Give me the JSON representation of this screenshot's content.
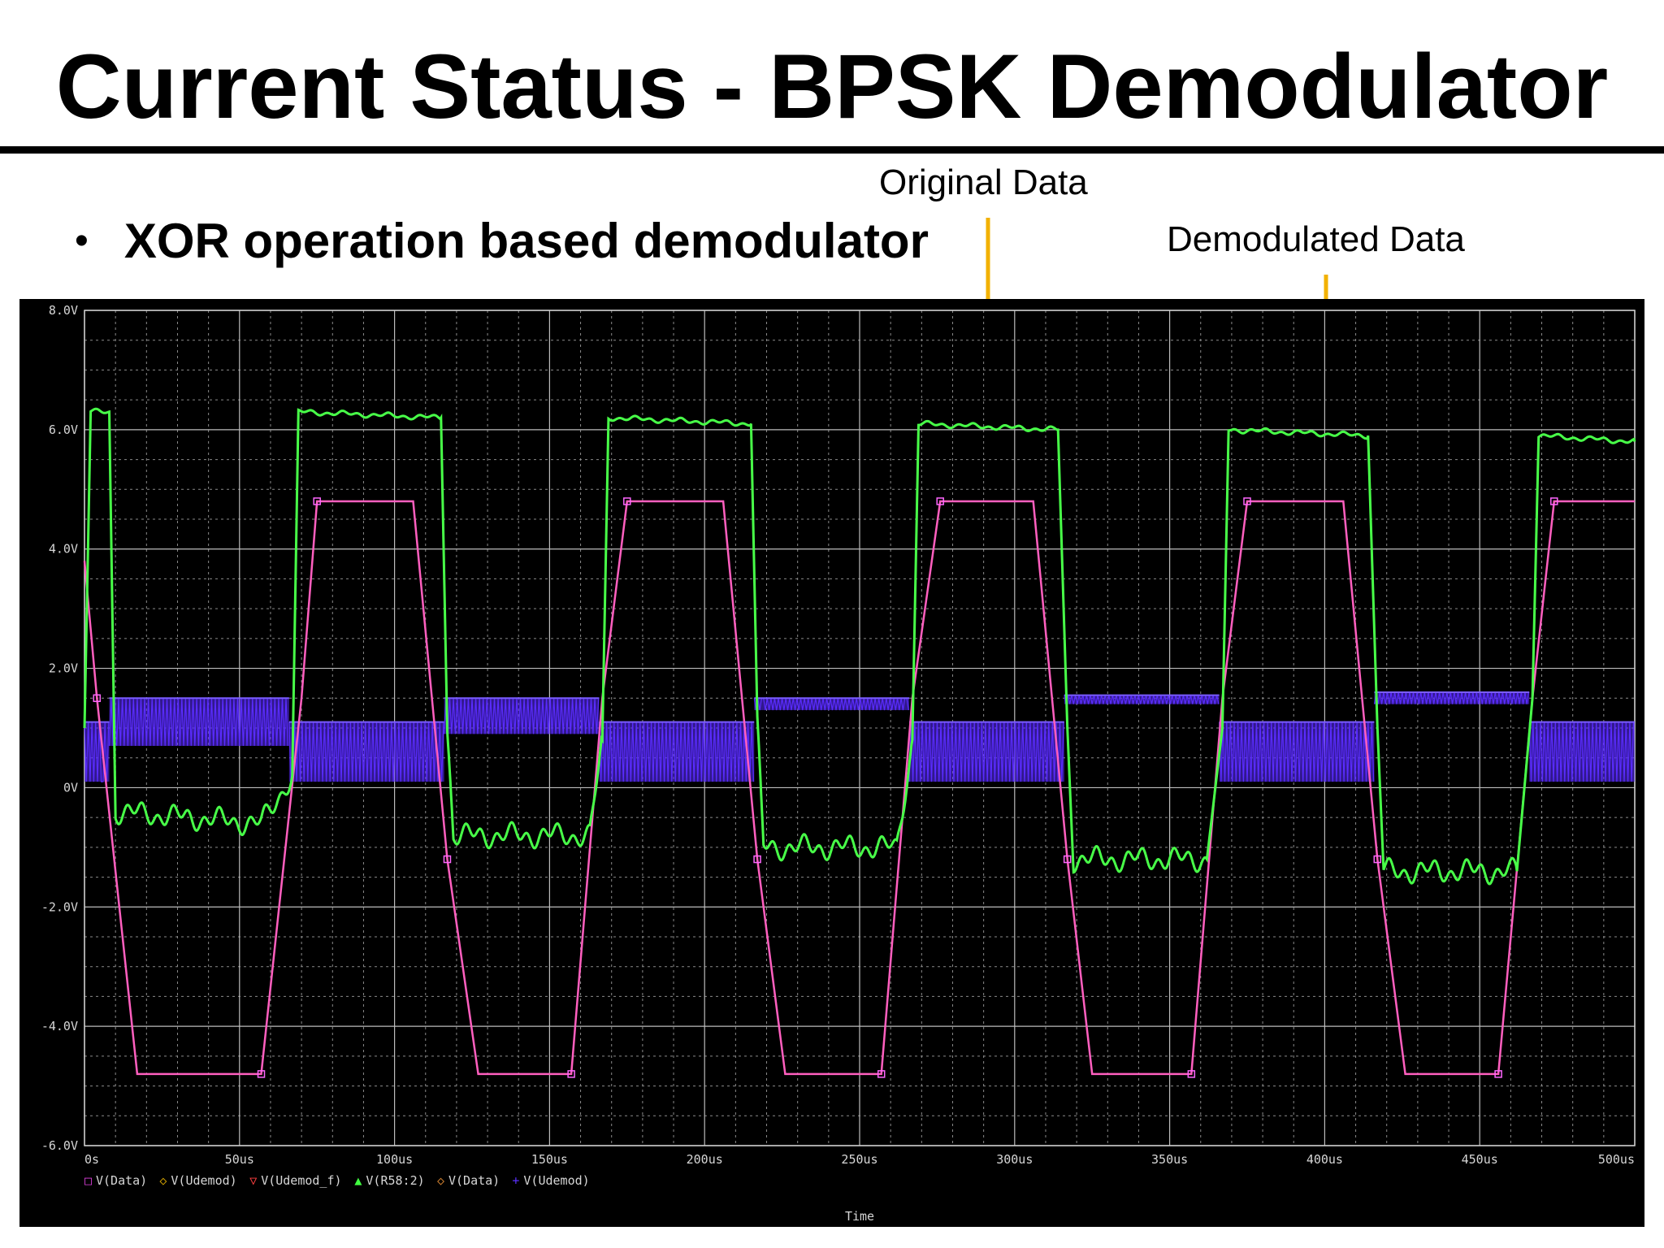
{
  "slide": {
    "title": "Current Status - BPSK Demodulator",
    "bullet": "XOR operation based demodulator",
    "bullet_symbol": "•"
  },
  "annotations": [
    {
      "text": "Original Data",
      "arrow_color": "#f2b100"
    },
    {
      "text": "Demodulated Data",
      "arrow_color": "#f2b100"
    }
  ],
  "chart_data": {
    "type": "line",
    "background": "#000000",
    "grid": true,
    "xlabel": "Time",
    "ylabel": "",
    "x_unit": "us",
    "xlim": [
      0,
      500
    ],
    "ylim": [
      -6,
      8
    ],
    "x_ticks": [
      {
        "v": 0,
        "label": "0s"
      },
      {
        "v": 50,
        "label": "50us"
      },
      {
        "v": 100,
        "label": "100us"
      },
      {
        "v": 150,
        "label": "150us"
      },
      {
        "v": 200,
        "label": "200us"
      },
      {
        "v": 250,
        "label": "250us"
      },
      {
        "v": 300,
        "label": "300us"
      },
      {
        "v": 350,
        "label": "350us"
      },
      {
        "v": 400,
        "label": "400us"
      },
      {
        "v": 450,
        "label": "450us"
      },
      {
        "v": 500,
        "label": "500us"
      }
    ],
    "y_ticks": [
      {
        "v": 8,
        "label": "8.0V"
      },
      {
        "v": 6,
        "label": "6.0V"
      },
      {
        "v": 4,
        "label": "4.0V"
      },
      {
        "v": 2,
        "label": "2.0V"
      },
      {
        "v": 0,
        "label": "0V"
      },
      {
        "v": -2,
        "label": "-2.0V"
      },
      {
        "v": -4,
        "label": "-4.0V"
      },
      {
        "v": -6,
        "label": "-6.0V"
      }
    ],
    "legend": [
      {
        "symbol": "□",
        "name": "V(Data)",
        "color": "#e040e0"
      },
      {
        "symbol": "◇",
        "name": "V(Udemod)",
        "color": "#d0a000"
      },
      {
        "symbol": "▽",
        "name": "V(Udemod_f)",
        "color": "#ff4040"
      },
      {
        "symbol": "▲",
        "name": "V(R58:2)",
        "color": "#40ff40"
      },
      {
        "symbol": "◇",
        "name": "V(Data)",
        "color": "#d08030"
      },
      {
        "symbol": "+",
        "name": "V(Udemod)",
        "color": "#5a30ff"
      }
    ],
    "series": [
      {
        "name": "V(Data)",
        "color": "#ff5fbf",
        "x": [
          0,
          4,
          17,
          57,
          70,
          75,
          106,
          117,
          127,
          157,
          167,
          175,
          206,
          217,
          226,
          257,
          267,
          276,
          306,
          317,
          325,
          357,
          367,
          375,
          406,
          417,
          426,
          456,
          467,
          474,
          500
        ],
        "y": [
          3.8,
          1.5,
          -4.8,
          -4.8,
          1.5,
          4.8,
          4.8,
          -1.2,
          -4.8,
          -4.8,
          1.5,
          4.8,
          4.8,
          -1.2,
          -4.8,
          -4.8,
          1.5,
          4.8,
          4.8,
          -1.2,
          -4.8,
          -4.8,
          1.5,
          4.8,
          4.8,
          -1.2,
          -4.8,
          -4.8,
          1.5,
          4.8,
          4.8
        ]
      },
      {
        "name": "V(R58:2)",
        "color": "#48ff48",
        "x": [
          0,
          2,
          4,
          8,
          10,
          57,
          67,
          69,
          115,
          117,
          119,
          163,
          167,
          169,
          215,
          217,
          219,
          262,
          267,
          269,
          314,
          317,
          319,
          362,
          367,
          369,
          414,
          417,
          419,
          462,
          467,
          469,
          500
        ],
        "y": [
          1.0,
          6.3,
          6.3,
          6.3,
          -0.4,
          -0.6,
          0.2,
          6.3,
          6.2,
          1.0,
          -0.8,
          -0.8,
          0.8,
          6.2,
          6.1,
          1.0,
          -1.0,
          -1.0,
          0.8,
          6.1,
          6.0,
          1.0,
          -1.2,
          -1.2,
          1.0,
          6.0,
          5.9,
          1.0,
          -1.4,
          -1.4,
          1.5,
          5.9,
          5.8
        ]
      },
      {
        "name": "V(Udemod)",
        "color": "#5a2cff",
        "segments": [
          {
            "x0": 0,
            "x1": 8,
            "lo": 0.1,
            "hi": 1.1
          },
          {
            "x0": 8,
            "x1": 66,
            "lo": 0.7,
            "hi": 1.5
          },
          {
            "x0": 66,
            "x1": 116,
            "lo": 0.1,
            "hi": 1.1
          },
          {
            "x0": 116,
            "x1": 166,
            "lo": 0.9,
            "hi": 1.5
          },
          {
            "x0": 166,
            "x1": 216,
            "lo": 0.1,
            "hi": 1.1
          },
          {
            "x0": 216,
            "x1": 266,
            "lo": 1.3,
            "hi": 1.5
          },
          {
            "x0": 266,
            "x1": 316,
            "lo": 0.1,
            "hi": 1.1
          },
          {
            "x0": 316,
            "x1": 366,
            "lo": 1.4,
            "hi": 1.55
          },
          {
            "x0": 366,
            "x1": 416,
            "lo": 0.1,
            "hi": 1.1
          },
          {
            "x0": 416,
            "x1": 466,
            "lo": 1.4,
            "hi": 1.6
          },
          {
            "x0": 466,
            "x1": 500,
            "lo": 0.1,
            "hi": 1.1
          }
        ]
      }
    ]
  }
}
